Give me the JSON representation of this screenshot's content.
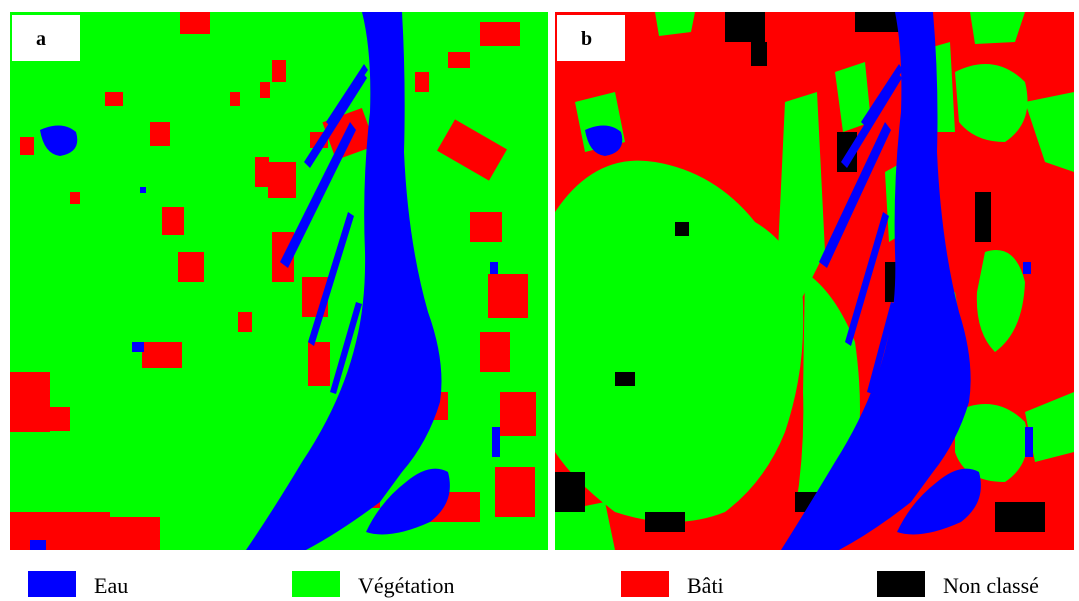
{
  "panels": [
    {
      "label": "a"
    },
    {
      "label": "b"
    }
  ],
  "colors": {
    "water": "#0000ff",
    "vegetation": "#00ff00",
    "built": "#ff0000",
    "unclassified": "#000000"
  },
  "legend": [
    {
      "label": "Eau",
      "color": "#0000ff"
    },
    {
      "label": "Végétation",
      "color": "#00ff00"
    },
    {
      "label": "Bâti",
      "color": "#ff0000"
    },
    {
      "label": "Non classé",
      "color": "#000000"
    }
  ]
}
